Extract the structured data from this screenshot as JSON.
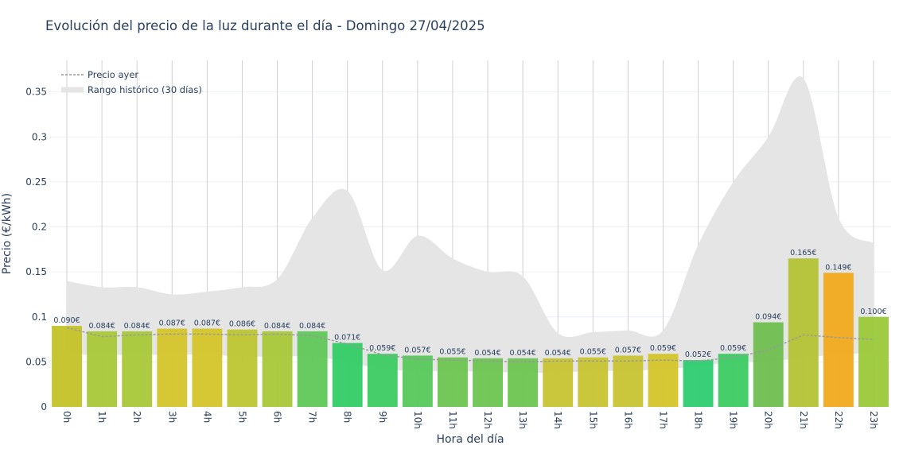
{
  "chart_data": {
    "type": "bar",
    "title": "Evolución del precio de la luz durante el día - Domingo 27/04/2025",
    "xlabel": "Hora del día",
    "ylabel": "Precio (€/kWh)",
    "ylim": [
      0,
      0.385
    ],
    "yticks": [
      0,
      0.05,
      0.1,
      0.15,
      0.2,
      0.25,
      0.3,
      0.35
    ],
    "ytick_labels": [
      "0",
      "0.05",
      "0.1",
      "0.15",
      "0.2",
      "0.25",
      "0.3",
      "0.35"
    ],
    "categories": [
      "0h",
      "1h",
      "2h",
      "3h",
      "4h",
      "5h",
      "6h",
      "7h",
      "8h",
      "9h",
      "10h",
      "11h",
      "12h",
      "13h",
      "14h",
      "15h",
      "16h",
      "17h",
      "18h",
      "19h",
      "20h",
      "21h",
      "22h",
      "23h"
    ],
    "values": [
      0.09,
      0.084,
      0.084,
      0.087,
      0.087,
      0.086,
      0.084,
      0.084,
      0.071,
      0.059,
      0.057,
      0.055,
      0.054,
      0.054,
      0.054,
      0.055,
      0.057,
      0.059,
      0.052,
      0.059,
      0.094,
      0.165,
      0.149,
      0.1
    ],
    "value_labels": [
      "0.090€",
      "0.084€",
      "0.084€",
      "0.087€",
      "0.087€",
      "0.086€",
      "0.084€",
      "0.084€",
      "0.071€",
      "0.059€",
      "0.057€",
      "0.055€",
      "0.054€",
      "0.054€",
      "0.054€",
      "0.055€",
      "0.057€",
      "0.059€",
      "0.052€",
      "0.059€",
      "0.094€",
      "0.165€",
      "0.149€",
      "0.100€"
    ],
    "bar_colors": [
      "#c4c327",
      "#a9c838",
      "#a9c838",
      "#d4c52a",
      "#d4c52a",
      "#bcc630",
      "#a9c838",
      "#5fc858",
      "#33cc66",
      "#3ccb62",
      "#56c85a",
      "#6dc450",
      "#6dc450",
      "#6dc450",
      "#c8c431",
      "#c8c431",
      "#c8c431",
      "#d4c52a",
      "#2ecc71",
      "#3ccb62",
      "#6fbf50",
      "#b3c334",
      "#f1a91e",
      "#9bc93a"
    ],
    "series": [
      {
        "name": "Precio ayer",
        "style": "dotted-line",
        "color": "#999999",
        "values": [
          0.088,
          0.078,
          0.08,
          0.081,
          0.081,
          0.08,
          0.081,
          0.079,
          0.07,
          0.058,
          0.053,
          0.052,
          0.051,
          0.05,
          0.051,
          0.051,
          0.051,
          0.052,
          0.051,
          0.055,
          0.063,
          0.08,
          0.077,
          0.075
        ]
      },
      {
        "name": "Rango histórico (30 días)",
        "style": "band",
        "color": "#e5e5e5",
        "max": [
          0.14,
          0.133,
          0.133,
          0.125,
          0.128,
          0.133,
          0.142,
          0.21,
          0.24,
          0.152,
          0.19,
          0.165,
          0.15,
          0.145,
          0.082,
          0.083,
          0.085,
          0.085,
          0.18,
          0.25,
          0.3,
          0.365,
          0.21,
          0.182
        ],
        "min": [
          0.058,
          0.058,
          0.058,
          0.058,
          0.058,
          0.056,
          0.056,
          0.056,
          0.05,
          0.042,
          0.04,
          0.04,
          0.039,
          0.038,
          0.038,
          0.04,
          0.04,
          0.042,
          0.045,
          0.05,
          0.05,
          0.055,
          0.058,
          0.06
        ]
      }
    ],
    "legend_position": "top-left",
    "grid": true
  }
}
